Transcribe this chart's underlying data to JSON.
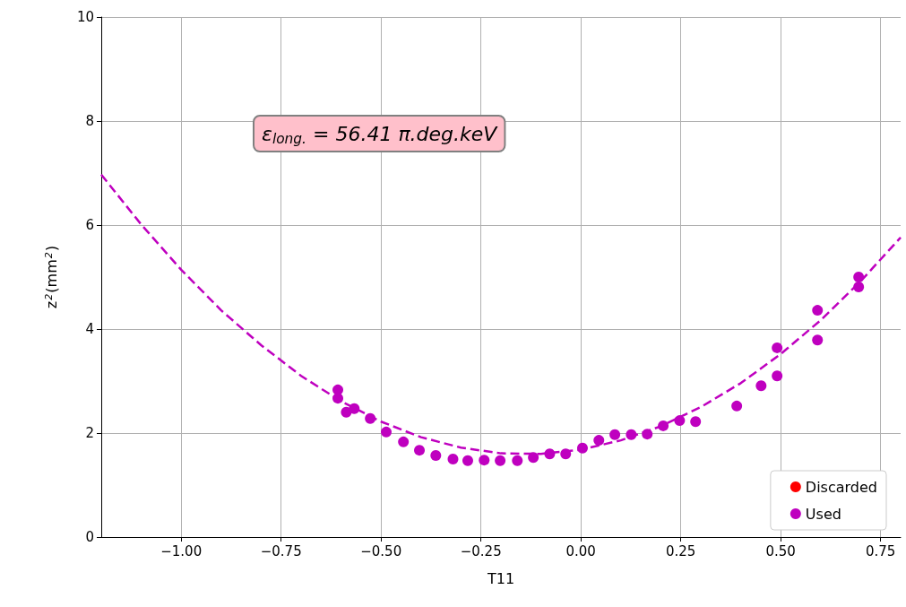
{
  "chart_data": {
    "type": "scatter",
    "xlabel": "T11",
    "ylabel": "z$^{2}$(mm$^{2}$)",
    "annotations": [
      "ε$_{long.}$ = 56.41 π.deg.keV"
    ],
    "xlim": [
      -1.2,
      0.8
    ],
    "ylim": [
      0,
      10
    ],
    "xticks": [
      {
        "value": -1.0,
        "label": "−1.00"
      },
      {
        "value": -0.75,
        "label": "−0.75"
      },
      {
        "value": -0.5,
        "label": "−0.50"
      },
      {
        "value": -0.25,
        "label": "−0.25"
      },
      {
        "value": 0,
        "label": "0.00"
      },
      {
        "value": 0.25,
        "label": "0.25"
      },
      {
        "value": 0.5,
        "label": "0.50"
      },
      {
        "value": 0.75,
        "label": "0.75"
      }
    ],
    "yticks": [
      0,
      2,
      4,
      6,
      8,
      10
    ],
    "grid": true,
    "legend": "bottom right",
    "marker": "circle",
    "series": [
      {
        "type": "line",
        "color": "#bf00bf",
        "line_style": "dashed",
        "marker": "none",
        "x": [
          -1.2,
          -1.1,
          -1.0,
          -0.9,
          -0.8,
          -0.7,
          -0.6,
          -0.5,
          -0.4,
          -0.3,
          -0.2,
          -0.1,
          0,
          0.1,
          0.2,
          0.3,
          0.4,
          0.5,
          0.6,
          0.7,
          0.8
        ],
        "values": [
          6.97,
          6.01,
          5.14,
          4.36,
          3.69,
          3.1,
          2.61,
          2.22,
          1.92,
          1.72,
          1.61,
          1.6,
          1.68,
          1.86,
          2.13,
          2.5,
          2.96,
          3.52,
          4.17,
          4.92,
          5.76
        ]
      },
      {
        "name": "Discarded",
        "color": "#ff0000"
      },
      {
        "name": "Used",
        "color": "#bf00bf",
        "x": [
          -0.608,
          -0.608,
          -0.587,
          -0.567,
          -0.527,
          -0.487,
          -0.444,
          -0.404,
          -0.363,
          -0.32,
          -0.283,
          -0.242,
          -0.202,
          -0.159,
          -0.119,
          -0.078,
          -0.038,
          0.004,
          0.045,
          0.085,
          0.126,
          0.166,
          0.206,
          0.247,
          0.287,
          0.39,
          0.451,
          0.491,
          0.491,
          0.592,
          0.592,
          0.695,
          0.695
        ],
        "values": [
          2.83,
          2.67,
          2.4,
          2.47,
          2.28,
          2.02,
          1.83,
          1.67,
          1.57,
          1.5,
          1.47,
          1.48,
          1.47,
          1.47,
          1.53,
          1.6,
          1.6,
          1.71,
          1.86,
          1.97,
          1.97,
          1.98,
          2.14,
          2.24,
          2.22,
          2.52,
          2.91,
          3.1,
          3.64,
          3.79,
          4.36,
          4.81,
          5.0
        ]
      }
    ]
  }
}
